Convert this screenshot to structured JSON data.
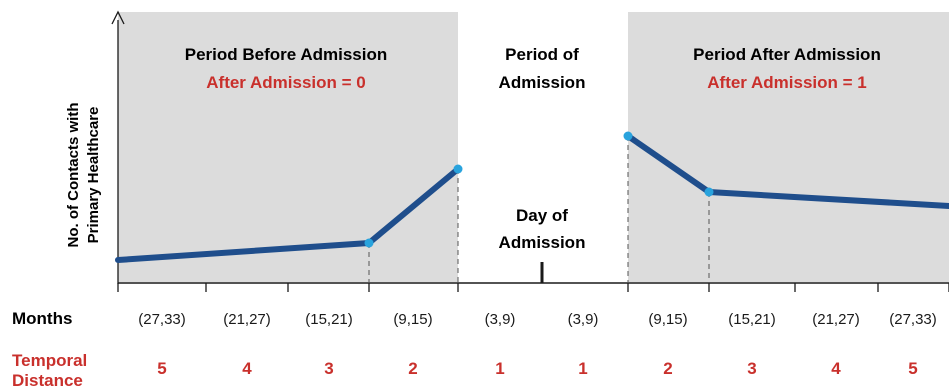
{
  "panels": {
    "before": {
      "title": "Period Before Admission",
      "subtitle": "After Admission = 0"
    },
    "admission": {
      "title_line1": "Period of",
      "title_line2": "Admission",
      "day_label_line1": "Day of",
      "day_label_line2": "Admission"
    },
    "after": {
      "title": "Period After Admission",
      "subtitle": "After Admission = 1"
    }
  },
  "y_axis": {
    "label_line1": "No. of Contacts with",
    "label_line2": "Primary Healthcare"
  },
  "rows": {
    "months_label": "Months",
    "distance_label_line1": "Temporal",
    "distance_label_line2": "Distance"
  },
  "months": [
    "(27,33)",
    "(21,27)",
    "(15,21)",
    "(9,15)",
    "(3,9)",
    "(3,9)",
    "(9,15)",
    "(15,21)",
    "(21,27)",
    "(27,33)"
  ],
  "temporal_distance": [
    "5",
    "4",
    "3",
    "2",
    "1",
    "1",
    "2",
    "3",
    "4",
    "5"
  ],
  "colors": {
    "shade": "#dcdcdc",
    "line": "#1f4e8c",
    "point": "#29a3dd",
    "accent_red": "#c9302c",
    "text": "#1a1a1a"
  }
}
